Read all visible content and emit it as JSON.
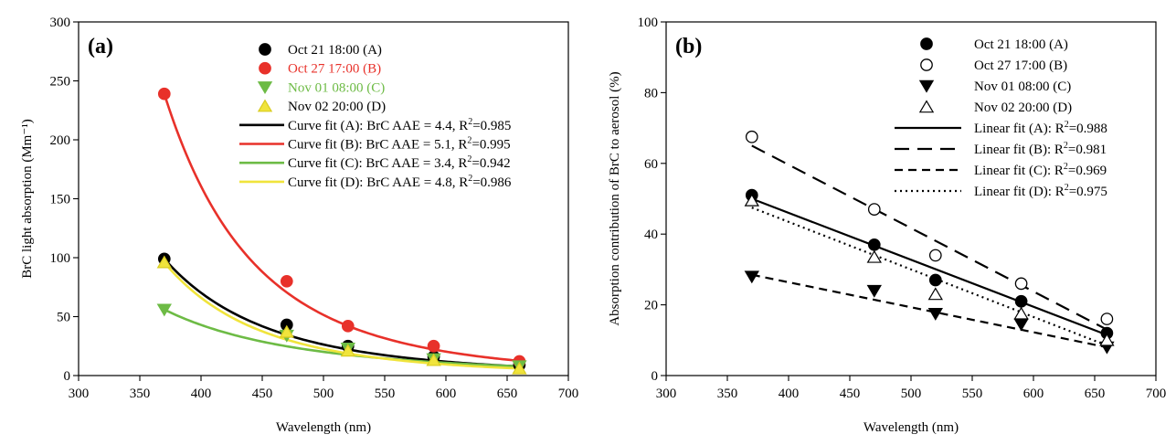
{
  "chart_data": [
    {
      "type": "scatter",
      "panel_label": "(a)",
      "xlabel": "Wavelength (nm)",
      "ylabel": "BrC light absorption (Mm⁻¹)",
      "xlim": [
        300,
        700
      ],
      "ylim": [
        0,
        300
      ],
      "xticks": [
        300,
        350,
        400,
        450,
        500,
        550,
        600,
        650,
        700
      ],
      "yticks": [
        0,
        50,
        100,
        150,
        200,
        250,
        300
      ],
      "grid": false,
      "legend_position": "top-right",
      "x": [
        370,
        470,
        520,
        590,
        660
      ],
      "series": [
        {
          "name": "Oct 21 18:00 (A)",
          "marker": "circle",
          "color": "#000000",
          "filled": true,
          "values": [
            99,
            43,
            25,
            16,
            9
          ]
        },
        {
          "name": "Oct 27 17:00 (B)",
          "marker": "circle",
          "color": "#e8312a",
          "filled": true,
          "values": [
            239,
            80,
            42,
            25,
            12
          ]
        },
        {
          "name": "Nov 01 08:00 (C)",
          "marker": "triangle-down",
          "color": "#6dbb45",
          "filled": true,
          "values": [
            56,
            34,
            23,
            14,
            8
          ]
        },
        {
          "name": "Nov 02 20:00 (D)",
          "marker": "triangle-up",
          "color": "#f0e43c",
          "filled": true,
          "values": [
            96,
            37,
            21,
            13,
            6
          ]
        }
      ],
      "fits": [
        {
          "name": "Curve fit (A)",
          "label": "Curve fit (A): BrC AAE = 4.4, R",
          "sup": "2",
          "r2": "=0.985",
          "color": "#000000",
          "dash": "",
          "aae": 4.4,
          "anchor": [
            370,
            99
          ]
        },
        {
          "name": "Curve fit (B)",
          "label": "Curve fit (B): BrC AAE = 5.1, R",
          "sup": "2",
          "r2": "=0.995",
          "color": "#e8312a",
          "dash": "",
          "aae": 5.1,
          "anchor": [
            370,
            239
          ]
        },
        {
          "name": "Curve fit (C)",
          "label": "Curve fit (C): BrC AAE = 3.4, R",
          "sup": "2",
          "r2": "=0.942",
          "color": "#6dbb45",
          "dash": "",
          "aae": 3.4,
          "anchor": [
            370,
            56
          ]
        },
        {
          "name": "Curve fit (D)",
          "label": "Curve fit (D): BrC AAE = 4.8, R",
          "sup": "2",
          "r2": "=0.986",
          "color": "#f0e43c",
          "dash": "",
          "aae": 4.8,
          "anchor": [
            370,
            96
          ]
        }
      ]
    },
    {
      "type": "scatter",
      "panel_label": "(b)",
      "xlabel": "Wavelength (nm)",
      "ylabel": "Absorption contribution of BrC to aerosol (%)",
      "xlim": [
        300,
        700
      ],
      "ylim": [
        0,
        100
      ],
      "xticks": [
        300,
        350,
        400,
        450,
        500,
        550,
        600,
        650,
        700
      ],
      "yticks": [
        0,
        20,
        40,
        60,
        80,
        100
      ],
      "grid": false,
      "legend_position": "top-right",
      "x": [
        370,
        470,
        520,
        590,
        660
      ],
      "series": [
        {
          "name": "Oct 21 18:00 (A)",
          "marker": "circle",
          "color": "#000000",
          "filled": true,
          "values": [
            51,
            37,
            27,
            21,
            12
          ]
        },
        {
          "name": "Oct 27 17:00 (B)",
          "marker": "circle",
          "color": "#000000",
          "filled": false,
          "values": [
            67.5,
            47,
            34,
            26,
            16
          ]
        },
        {
          "name": "Nov 01 08:00 (C)",
          "marker": "triangle-down",
          "color": "#000000",
          "filled": true,
          "values": [
            28,
            24,
            17.5,
            14.5,
            8
          ]
        },
        {
          "name": "Nov 02 20:00 (D)",
          "marker": "triangle-up",
          "color": "#000000",
          "filled": false,
          "values": [
            49.5,
            33.5,
            23,
            17.5,
            10
          ]
        }
      ],
      "fits": [
        {
          "name": "Linear fit (A)",
          "label": "Linear fit (A): R",
          "sup": "2",
          "r2": "=0.988",
          "color": "#000000",
          "dash": "",
          "line": [
            [
              370,
              50
            ],
            [
              660,
              11.5
            ]
          ]
        },
        {
          "name": "Linear fit (B)",
          "label": "Linear fit (B): R",
          "sup": "2",
          "r2": "=0.981",
          "color": "#000000",
          "dash": "16,9",
          "line": [
            [
              370,
              65
            ],
            [
              660,
              13
            ]
          ]
        },
        {
          "name": "Linear fit (C)",
          "label": "Linear fit (C): R",
          "sup": "2",
          "r2": "=0.969",
          "color": "#000000",
          "dash": "9,6",
          "line": [
            [
              370,
              28.5
            ],
            [
              660,
              8
            ]
          ]
        },
        {
          "name": "Linear fit (D)",
          "label": "Linear fit (D): R",
          "sup": "2",
          "r2": "=0.975",
          "color": "#000000",
          "dash": "2,4",
          "line": [
            [
              370,
              47.5
            ],
            [
              660,
              8.5
            ]
          ]
        }
      ]
    }
  ]
}
